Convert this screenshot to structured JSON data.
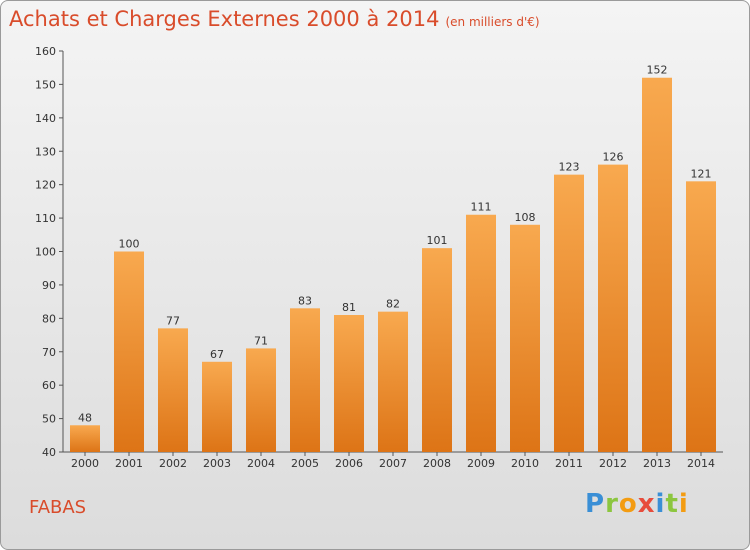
{
  "chart_data": {
    "type": "bar",
    "title": "Achats et Charges Externes 2000 à 2014",
    "subtitle": "(en milliers d'€)",
    "categories": [
      "2000",
      "2001",
      "2002",
      "2003",
      "2004",
      "2005",
      "2006",
      "2007",
      "2008",
      "2009",
      "2010",
      "2011",
      "2012",
      "2013",
      "2014"
    ],
    "values": [
      48,
      100,
      77,
      67,
      71,
      83,
      81,
      82,
      101,
      111,
      108,
      123,
      126,
      152,
      121
    ],
    "ylim": [
      40,
      160
    ],
    "yticks": [
      40,
      50,
      60,
      70,
      80,
      90,
      100,
      110,
      120,
      130,
      140,
      150,
      160
    ],
    "grid": false,
    "bar_color": "#f5a04a",
    "bar_color_dark": "#e07b1c"
  },
  "city": "FABAS",
  "logo": {
    "letters": [
      "P",
      "r",
      "o",
      "x",
      "i",
      "t",
      "i"
    ],
    "colors": [
      "#3a8fd6",
      "#8cc63f",
      "#f39c12",
      "#e74c3c",
      "#3a8fd6",
      "#8cc63f",
      "#f39c12"
    ]
  }
}
